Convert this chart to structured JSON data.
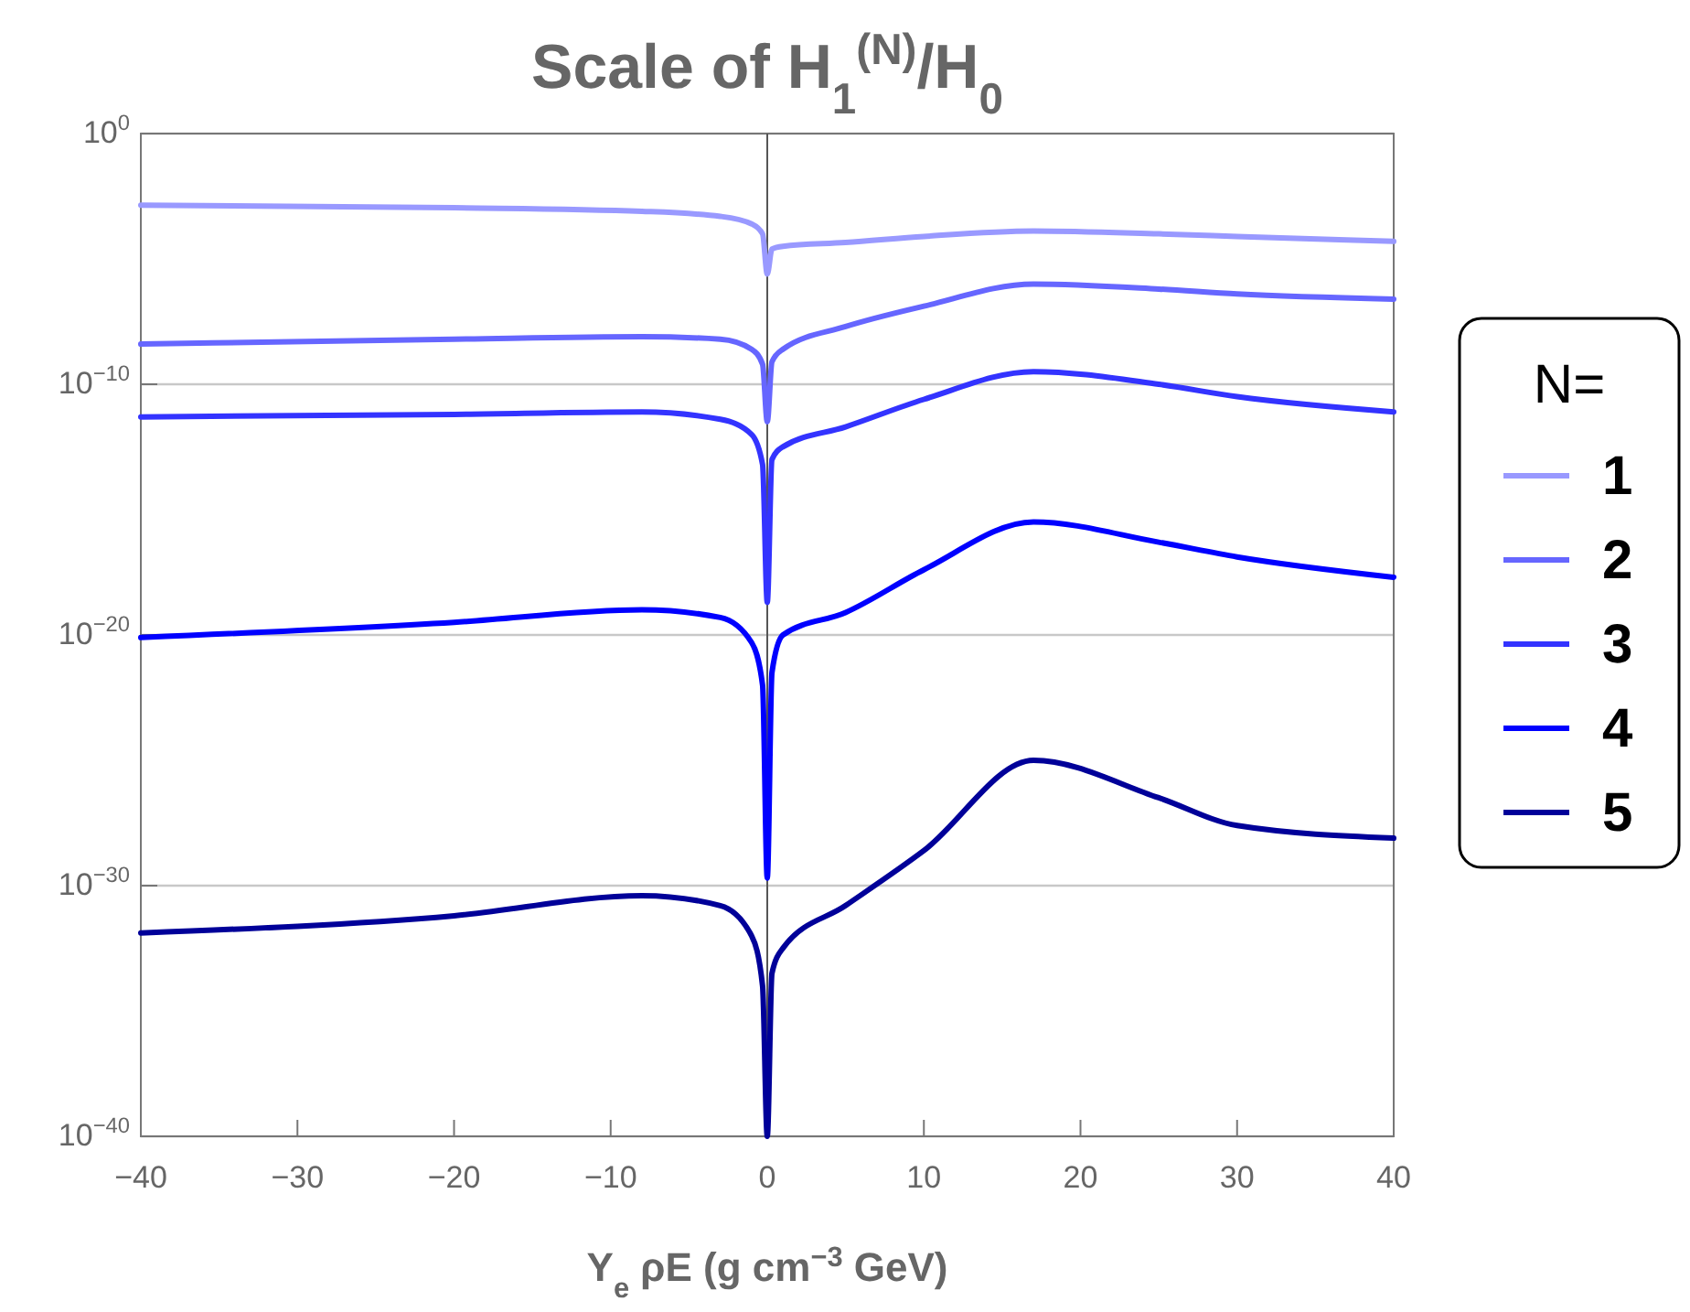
{
  "chart_data": {
    "type": "line",
    "title": "Scale of H$_{1}$$^{(N)}$/H$_{0}$",
    "xlabel": "Y$_{e}$ ρE (g cm$^{−3}$ GeV)",
    "legend_title": "N=",
    "x": [
      -40,
      -20,
      -8,
      -3,
      -1,
      -0.3,
      0,
      0.3,
      1,
      5,
      10,
      17,
      25,
      30,
      40
    ],
    "series": [
      {
        "name": "1",
        "color": "#9999ff",
        "values": [
          0.0014,
          0.0011,
          0.00079,
          0.0005,
          0.00025,
          0.0001,
          2.5e-06,
          2.5e-05,
          3.2e-05,
          4.5e-05,
          7.9e-05,
          0.00013,
          0.0001,
          7.9e-05,
          5e-05
        ]
      },
      {
        "name": "2",
        "color": "#6666ff",
        "values": [
          4e-09,
          6.3e-09,
          7.9e-09,
          6.3e-09,
          2.5e-09,
          6.3e-10,
          3.2e-12,
          7.9e-10,
          2.5e-09,
          2e-08,
          1.3e-07,
          1e-06,
          6.3e-07,
          4e-07,
          2.5e-07
        ]
      },
      {
        "name": "3",
        "color": "#3333ff",
        "values": [
          5e-12,
          6.3e-12,
          7.9e-12,
          4e-12,
          1e-12,
          6.3e-14,
          2e-19,
          1e-13,
          3.2e-13,
          2e-12,
          2.5e-11,
          3.2e-10,
          1e-10,
          3.2e-11,
          7.9e-12
        ]
      },
      {
        "name": "4",
        "color": "#0000ff",
        "values": [
          7.9e-21,
          3.2e-20,
          1e-19,
          5e-20,
          5e-21,
          1e-22,
          2e-30,
          3.2e-22,
          1e-20,
          7.9e-20,
          4e-18,
          3.2e-16,
          5e-17,
          1.3e-17,
          2e-18
        ]
      },
      {
        "name": "5",
        "color": "#000099",
        "values": [
          1.3e-32,
          6.3e-32,
          4e-31,
          1.6e-31,
          1e-32,
          1e-34,
          1e-40,
          3.2e-34,
          3.2e-33,
          1.6e-31,
          2.5e-29,
          1e-25,
          3.2e-27,
          2.5e-28,
          7.9e-29
        ]
      }
    ],
    "log": "y",
    "xlim": [
      -40,
      40
    ],
    "xticks": [
      {
        "value": -40,
        "label": "−40"
      },
      {
        "value": -30,
        "label": "−30"
      },
      {
        "value": -20,
        "label": "−20"
      },
      {
        "value": -10,
        "label": "−10"
      },
      0,
      10,
      20,
      30,
      40
    ],
    "ylim": [
      1e-40,
      1
    ],
    "yticks": [
      {
        "value": 1e-40,
        "label": "10$^{−40}$"
      },
      {
        "value": 1e-30,
        "label": "10$^{−30}$"
      },
      {
        "value": 1e-20,
        "label": "10$^{−20}$"
      },
      {
        "value": 1e-10,
        "label": "10$^{−10}$"
      },
      {
        "value": 1,
        "label": "10$^{0}$"
      }
    ],
    "grid": "y",
    "ref_lines": [
      {
        "axis": "x",
        "value": 0,
        "color": "#555555"
      }
    ],
    "legend": "right",
    "line_style": "solid",
    "marker": "none"
  }
}
